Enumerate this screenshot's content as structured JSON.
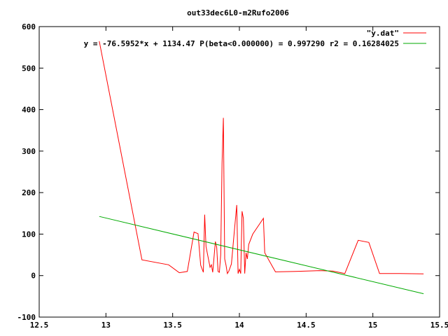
{
  "chart_data": {
    "type": "line",
    "title": "out33dec6L0-m2Rufo2006",
    "xlabel": "",
    "ylabel": "",
    "xlim": [
      12.5,
      15.5
    ],
    "ylim": [
      -100,
      600
    ],
    "xticks": [
      12.5,
      13,
      13.5,
      14,
      14.5,
      15,
      15.5
    ],
    "xtick_labels": [
      "12.5",
      "13",
      "13.5",
      "14",
      "14.5",
      "15",
      "15.5"
    ],
    "yticks": [
      -100,
      0,
      100,
      200,
      300,
      400,
      500,
      600
    ],
    "ytick_labels": [
      "-100",
      "0",
      "100",
      "200",
      "300",
      "400",
      "500",
      "600"
    ],
    "grid": false,
    "legend_position": "top-right",
    "series": [
      {
        "name": "\"y.dat\"",
        "color": "#ff0000",
        "x": [
          12.95,
          13.27,
          13.47,
          13.55,
          13.61,
          13.66,
          13.69,
          13.71,
          13.73,
          13.74,
          13.75,
          13.78,
          13.79,
          13.8,
          13.82,
          13.83,
          13.84,
          13.85,
          13.86,
          13.87,
          13.88,
          13.89,
          13.9,
          13.91,
          13.92,
          13.94,
          13.96,
          13.98,
          13.99,
          14.0,
          14.01,
          14.02,
          14.03,
          14.04,
          14.05,
          14.06,
          14.07,
          14.1,
          14.18,
          14.19,
          14.27,
          14.42,
          14.6,
          14.7,
          14.79,
          14.89,
          14.97,
          15.05,
          15.2,
          15.38
        ],
        "y": [
          565,
          38,
          26,
          7,
          10,
          105,
          101,
          25,
          8,
          147,
          70,
          20,
          26,
          8,
          82,
          68,
          10,
          8,
          50,
          270,
          380,
          40,
          25,
          5,
          10,
          28,
          100,
          170,
          5,
          15,
          5,
          155,
          138,
          5,
          55,
          40,
          75,
          100,
          138,
          55,
          9,
          10,
          12,
          11,
          5,
          85,
          80,
          5,
          5,
          4
        ]
      },
      {
        "name": "y = -76.5952*x + 1134.47 P(beta<0.000000) = 0.997290 r2 = 0.16284025",
        "color": "#00aa00",
        "x": [
          12.95,
          15.38
        ],
        "y": [
          142.6,
          -43.6
        ]
      }
    ]
  }
}
